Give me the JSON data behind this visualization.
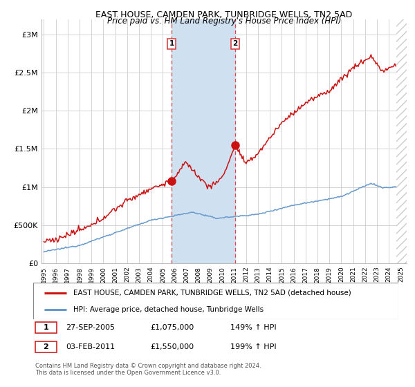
{
  "title": "EAST HOUSE, CAMDEN PARK, TUNBRIDGE WELLS, TN2 5AD",
  "subtitle": "Price paid vs. HM Land Registry's House Price Index (HPI)",
  "ylabel_ticks": [
    "£0",
    "£500K",
    "£1M",
    "£1.5M",
    "£2M",
    "£2.5M",
    "£3M"
  ],
  "ytick_vals": [
    0,
    500000,
    1000000,
    1500000,
    2000000,
    2500000,
    3000000
  ],
  "ylim": [
    0,
    3200000
  ],
  "xlim_start": 1994.8,
  "xlim_end": 2025.5,
  "xtick_years": [
    1995,
    1996,
    1997,
    1998,
    1999,
    2000,
    2001,
    2002,
    2003,
    2004,
    2005,
    2006,
    2007,
    2008,
    2009,
    2010,
    2011,
    2012,
    2013,
    2014,
    2015,
    2016,
    2017,
    2018,
    2019,
    2020,
    2021,
    2022,
    2023,
    2024,
    2025
  ],
  "sale1_x": 2005.74,
  "sale1_y": 1075000,
  "sale2_x": 2011.09,
  "sale2_y": 1550000,
  "sale1_label": "1",
  "sale2_label": "2",
  "highlight_color": "#cfe0f0",
  "red_line_color": "#cc1111",
  "blue_line_color": "#6699cc",
  "vline_color": "#dd4444",
  "legend_red_label": "EAST HOUSE, CAMDEN PARK, TUNBRIDGE WELLS, TN2 5AD (detached house)",
  "legend_blue_label": "HPI: Average price, detached house, Tunbridge Wells",
  "table_rows": [
    {
      "num": "1",
      "date": "27-SEP-2005",
      "price": "£1,075,000",
      "hpi": "149% ↑ HPI"
    },
    {
      "num": "2",
      "date": "03-FEB-2011",
      "price": "£1,550,000",
      "hpi": "199% ↑ HPI"
    }
  ],
  "footnote": "Contains HM Land Registry data © Crown copyright and database right 2024.\nThis data is licensed under the Open Government Licence v3.0.",
  "background_color": "#ffffff",
  "plot_bg_color": "#ffffff",
  "grid_color": "#cccccc",
  "hatch_color": "#cccccc"
}
